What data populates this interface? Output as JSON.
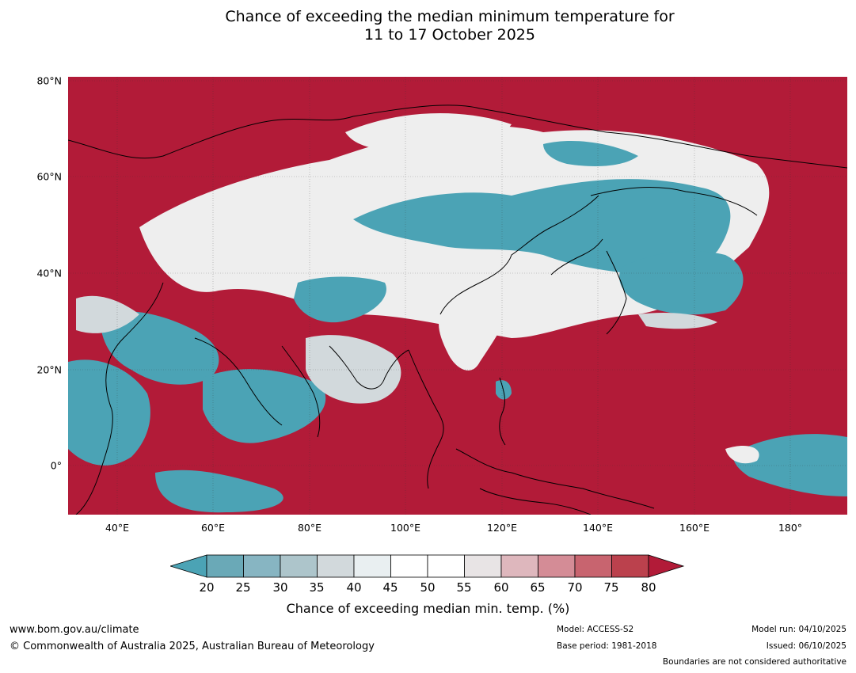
{
  "title": {
    "line1": "Chance of exceeding the median minimum temperature for",
    "line2": "11 to 17 October 2025"
  },
  "axes": {
    "lat_labels": [
      "80°N",
      "60°N",
      "40°N",
      "20°N",
      "0°"
    ],
    "lon_labels": [
      "40°E",
      "60°E",
      "80°E",
      "100°E",
      "120°E",
      "140°E",
      "160°E",
      "180°"
    ]
  },
  "colorbar": {
    "ticks": [
      "20",
      "25",
      "30",
      "35",
      "40",
      "45",
      "50",
      "55",
      "60",
      "65",
      "70",
      "75",
      "80"
    ],
    "colors": [
      "#4ba3b5",
      "#6aa9b7",
      "#87b5c2",
      "#adc5cb",
      "#d2d9dc",
      "#e9eff1",
      "#ffffff",
      "#ffffff",
      "#e8e4e5",
      "#deb7bd",
      "#d48c96",
      "#c8646f",
      "#bb414d",
      "#b21b38"
    ],
    "label": "Chance of exceeding median min. temp. (%)"
  },
  "map_colors": {
    "warm": "#b21b38",
    "cool": "#4ba3b5",
    "neutral": "#eeeeee",
    "light_cool": "#d2d9dc"
  },
  "footer": {
    "url": "www.bom.gov.au/climate",
    "copyright": "© Commonwealth of Australia 2025, Australian Bureau of Meteorology",
    "model": "Model: ACCESS-S2",
    "base_period": "Base period: 1981-2018",
    "model_run": "Model run: 04/10/2025",
    "issued": "Issued: 06/10/2025",
    "disclaimer": "Boundaries are not considered authoritative"
  }
}
